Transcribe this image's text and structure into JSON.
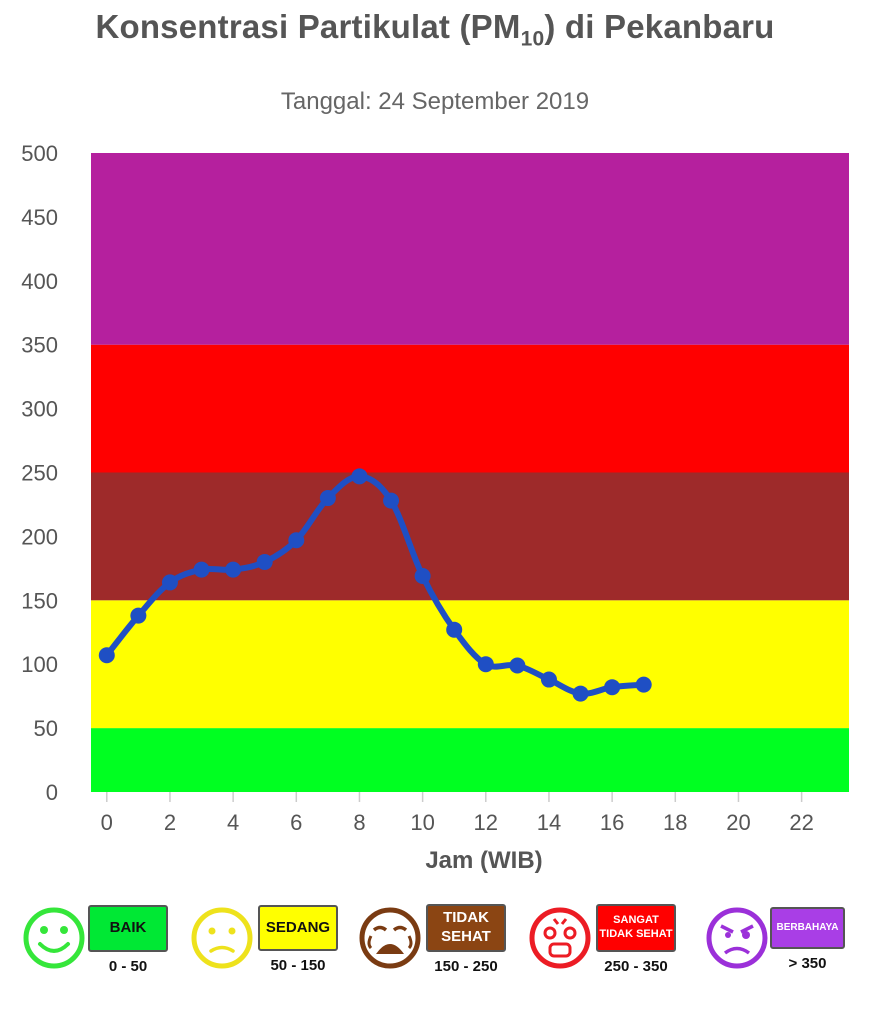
{
  "chart_data": {
    "type": "line",
    "title_main": "Konsentrasi Partikulat (PM",
    "title_sub": "10",
    "title_end": ") di Pekanbaru",
    "subtitle": "Tanggal: 24 September 2019",
    "xlabel": "Jam (WIB)",
    "ylabel": "",
    "xlim": [
      -0.5,
      23.5
    ],
    "ylim": [
      0,
      500
    ],
    "xticks": [
      0,
      2,
      4,
      6,
      8,
      10,
      12,
      14,
      16,
      18,
      20,
      22
    ],
    "yticks": [
      0,
      50,
      100,
      150,
      200,
      250,
      300,
      350,
      400,
      450,
      500
    ],
    "series": [
      {
        "color": "#1f4fc4",
        "x": [
          0,
          1,
          2,
          3,
          4,
          5,
          6,
          7,
          8,
          9,
          10,
          11,
          12,
          13,
          14,
          15,
          16,
          17
        ],
        "y": [
          107,
          138,
          164,
          174,
          174,
          180,
          197,
          230,
          247,
          228,
          169,
          127,
          100,
          99,
          88,
          77,
          82,
          84
        ]
      }
    ],
    "bands": [
      {
        "from": 0,
        "to": 50,
        "color": "#00ff21"
      },
      {
        "from": 50,
        "to": 150,
        "color": "#ffff00"
      },
      {
        "from": 150,
        "to": 250,
        "color": "#9e2a2a"
      },
      {
        "from": 250,
        "to": 350,
        "color": "#ff0000"
      },
      {
        "from": 350,
        "to": 500,
        "color": "#b5209e"
      }
    ]
  },
  "legend": [
    {
      "label_lines": [
        "BAIK"
      ],
      "range": "0 - 50",
      "color": "#00e834",
      "face_color": "#35e63a",
      "text_color": "#111111",
      "icon": "smiley-happy-icon"
    },
    {
      "label_lines": [
        "SEDANG"
      ],
      "range": "50 - 150",
      "color": "#ffff00",
      "face_color": "#eee21c",
      "text_color": "#111111",
      "icon": "smiley-neutral-icon"
    },
    {
      "label_lines": [
        "TIDAK",
        "SEHAT"
      ],
      "range": "150 - 250",
      "color": "#8b4513",
      "face_color": "#7a3b12",
      "text_color": "#ffffff",
      "icon": "smiley-crying-icon"
    },
    {
      "label_lines": [
        "SANGAT",
        "TIDAK SEHAT"
      ],
      "range": "250 - 350",
      "color": "#ff0000",
      "face_color": "#ec1c24",
      "text_color": "#ffffff",
      "icon": "smiley-sick-icon"
    },
    {
      "label_lines": [
        "BERBAHAYA"
      ],
      "range": "> 350",
      "color": "#a93ee6",
      "face_color": "#9b30d9",
      "text_color": "#ffffff",
      "icon": "smiley-angry-icon"
    }
  ]
}
